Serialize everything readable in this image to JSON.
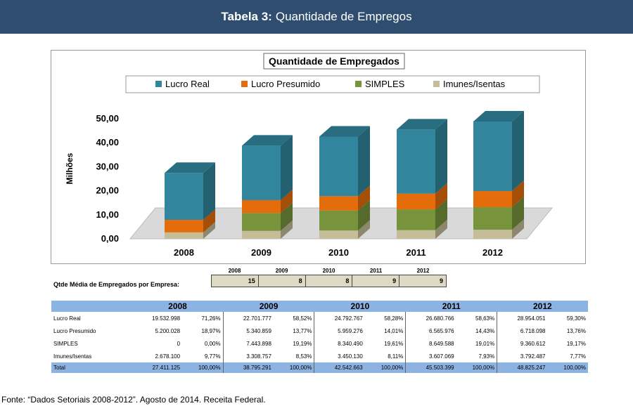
{
  "header": {
    "prefix": "Tabela 3:",
    "title": "Quantidade de Empregos"
  },
  "chart_data": {
    "type": "bar",
    "stacked": true,
    "title": "Quantidade de Empregados",
    "ylabel": "Milhões",
    "xlabel": "",
    "ylim": [
      0,
      50
    ],
    "yticks": [
      "0,00",
      "10,00",
      "20,00",
      "30,00",
      "40,00",
      "50,00"
    ],
    "categories": [
      "2008",
      "2009",
      "2010",
      "2011",
      "2012"
    ],
    "series": [
      {
        "name": "Imunes/Isentas",
        "color": "#c4bd97",
        "values": [
          2.6781,
          3.308757,
          3.45013,
          3.607069,
          3.792487
        ]
      },
      {
        "name": "SIMPLES",
        "color": "#77933c",
        "values": [
          0,
          7.443898,
          8.34049,
          8.649588,
          9.360612
        ]
      },
      {
        "name": "Lucro Presumido",
        "color": "#e46c0a",
        "values": [
          5.200028,
          5.340859,
          5.959276,
          6.565976,
          6.718098
        ]
      },
      {
        "name": "Lucro Real",
        "color": "#31859c",
        "values": [
          19.532998,
          22.701777,
          24.792767,
          26.680766,
          28.954051
        ]
      }
    ],
    "legend": [
      "Lucro Real",
      "Lucro Presumido",
      "SIMPLES",
      "Imunes/Isentas"
    ]
  },
  "avg": {
    "label": "Qtde Média de Empregados por Empresa:",
    "years": [
      "2008",
      "2009",
      "2010",
      "2011",
      "2012"
    ],
    "values": [
      "15",
      "8",
      "8",
      "9",
      "9"
    ]
  },
  "table": {
    "years": [
      "2008",
      "2009",
      "2010",
      "2011",
      "2012"
    ],
    "rows": [
      {
        "label": "Lucro Real",
        "cells": [
          [
            "19.532.998",
            "71,26%"
          ],
          [
            "22.701.777",
            "58,52%"
          ],
          [
            "24.792.767",
            "58,28%"
          ],
          [
            "26.680.766",
            "58,63%"
          ],
          [
            "28.954.051",
            "59,30%"
          ]
        ]
      },
      {
        "label": "Lucro Presumido",
        "cells": [
          [
            "5.200.028",
            "18,97%"
          ],
          [
            "5.340.859",
            "13,77%"
          ],
          [
            "5.959.276",
            "14,01%"
          ],
          [
            "6.565.976",
            "14,43%"
          ],
          [
            "6.718.098",
            "13,76%"
          ]
        ]
      },
      {
        "label": "SIMPLES",
        "cells": [
          [
            "0",
            "0,00%"
          ],
          [
            "7.443.898",
            "19,19%"
          ],
          [
            "8.340.490",
            "19,61%"
          ],
          [
            "8.649.588",
            "19,01%"
          ],
          [
            "9.360.612",
            "19,17%"
          ]
        ]
      },
      {
        "label": "Imunes/Isentas",
        "cells": [
          [
            "2.678.100",
            "9,77%"
          ],
          [
            "3.308.757",
            "8,53%"
          ],
          [
            "3.450.130",
            "8,11%"
          ],
          [
            "3.607.069",
            "7,93%"
          ],
          [
            "3.792.487",
            "7,77%"
          ]
        ]
      }
    ],
    "total": {
      "label": "Total",
      "cells": [
        [
          "27.411.125",
          "100,00%"
        ],
        [
          "38.795.291",
          "100,00%"
        ],
        [
          "42.542.663",
          "100,00%"
        ],
        [
          "45.503.399",
          "100,00%"
        ],
        [
          "48.825.247",
          "100,00%"
        ]
      ]
    }
  },
  "source": "Fonte: “Dados Setoriais 2008-2012”.  Agosto de 2014. Receita Federal."
}
